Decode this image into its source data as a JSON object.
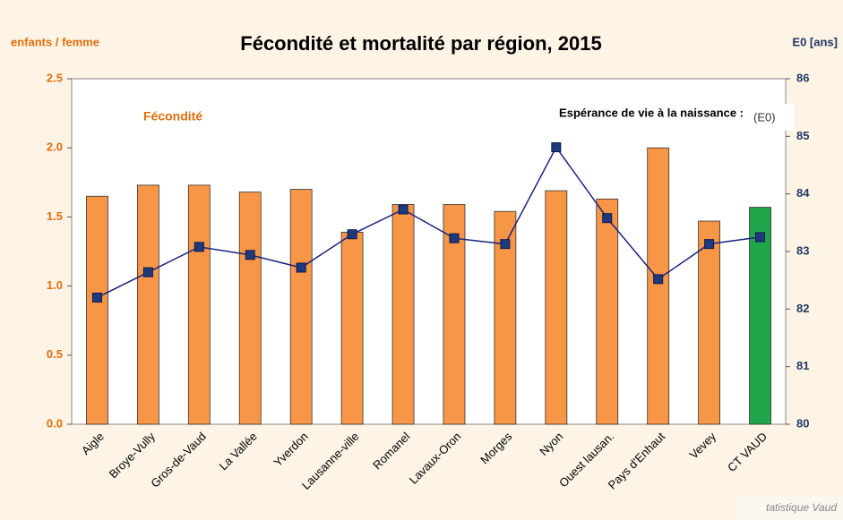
{
  "chart_data": {
    "type": "bar",
    "title": "Fécondité et mortalité par région, 2015",
    "y_label": "enfants / femme",
    "y2_label": "E0 [ans]",
    "annotations": [
      "Fécondité",
      "Espérance de vie à la naissance :",
      "(E0)"
    ],
    "source": "tatistique Vaud",
    "categories": [
      "Aigle",
      "Broye-Vully",
      "Gros-de-Vaud",
      "La Vallée",
      "Yverdon",
      "Lausanne-ville",
      "Romanel",
      "Lavaux-Oron",
      "Morges",
      "Nyon",
      "Ouest lausan.",
      "Pays d'Enhaut",
      "Vevey",
      "CT VAUD"
    ],
    "series": [
      {
        "name": "Fécondité",
        "color": "#f79646",
        "colors": [
          "#f79646",
          "#f79646",
          "#f79646",
          "#f79646",
          "#f79646",
          "#f79646",
          "#f79646",
          "#f79646",
          "#f79646",
          "#f79646",
          "#f79646",
          "#f79646",
          "#f79646",
          "#1fa64a"
        ],
        "values": [
          1.65,
          1.73,
          1.73,
          1.68,
          1.7,
          1.39,
          1.59,
          1.59,
          1.54,
          1.69,
          1.63,
          2.0,
          1.47,
          1.57
        ]
      },
      {
        "name": "Espérance de vie à la naissance",
        "color": "#1a237e",
        "axis": "y2",
        "values": [
          82.2,
          82.64,
          83.08,
          82.94,
          82.72,
          83.3,
          83.73,
          83.23,
          83.13,
          84.81,
          83.58,
          82.52,
          83.13,
          83.25
        ]
      }
    ],
    "ylim": [
      0,
      2.5
    ],
    "yticks": [
      {
        "value": 0,
        "label": "0.0"
      },
      0.5,
      {
        "value": 1,
        "label": "1.0"
      },
      1.5,
      {
        "value": 2,
        "label": "2.0"
      },
      2.5
    ],
    "y2lim": [
      80,
      86
    ],
    "y2ticks": [
      80,
      81,
      82,
      83,
      84,
      85,
      86
    ]
  }
}
